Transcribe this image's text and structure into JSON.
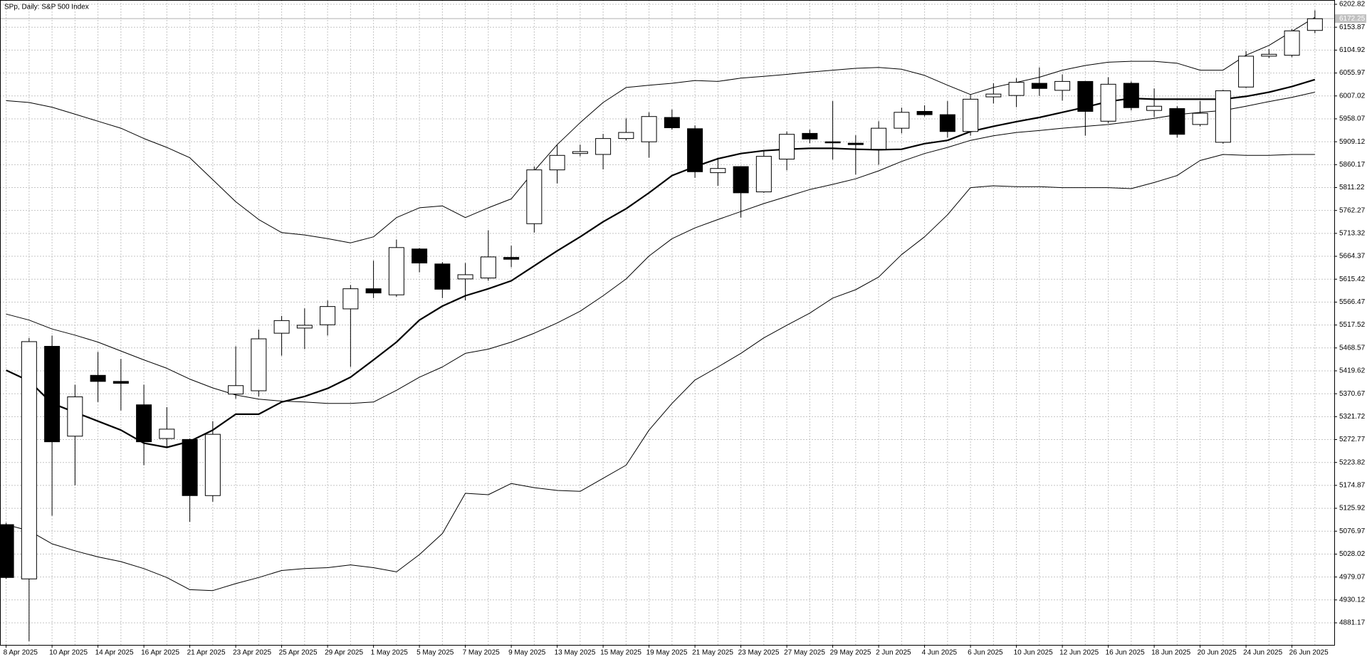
{
  "chart_data": {
    "type": "candlestick",
    "title": "SPp, Daily:  S&P 500 Index",
    "categories": [
      "8 Apr 2025",
      null,
      "10 Apr 2025",
      null,
      "14 Apr 2025",
      null,
      "16 Apr 2025",
      null,
      "21 Apr 2025",
      null,
      "23 Apr 2025",
      null,
      "25 Apr 2025",
      null,
      "29 Apr 2025",
      null,
      "1 May 2025",
      null,
      "5 May 2025",
      null,
      "7 May 2025",
      null,
      "9 May 2025",
      null,
      "13 May 2025",
      null,
      "15 May 2025",
      null,
      "19 May 2025",
      null,
      "21 May 2025",
      null,
      "23 May 2025",
      null,
      "27 May 2025",
      null,
      "29 May 2025",
      null,
      "2 Jun 2025",
      null,
      "4 Jun 2025",
      null,
      "6 Jun 2025",
      null,
      "10 Jun 2025",
      null,
      "12 Jun 2025",
      null,
      "16 Jun 2025",
      null,
      "18 Jun 2025",
      null,
      "20 Jun 2025",
      null,
      "24 Jun 2025",
      null,
      "26 Jun 2025",
      null
    ],
    "open": [
      5091,
      4975,
      5472,
      5280,
      5410,
      5397,
      5347,
      5275,
      5273,
      5153,
      5370,
      5377,
      5500,
      5511,
      5518,
      5552,
      5595,
      5582,
      5680,
      5648,
      5616,
      5618,
      5662,
      5734,
      5849,
      5884,
      5882,
      5916,
      5909,
      5961,
      5937,
      5843,
      5856,
      5802,
      5872,
      5927,
      5909,
      5906,
      5893,
      5938,
      5974,
      5967,
      5931,
      6005,
      6008,
      6034,
      6019,
      6038,
      5953,
      6034,
      5976,
      5980,
      5946,
      5908,
      6026,
      6092,
      6094,
      6147
    ],
    "high": [
      5095,
      5490,
      5495,
      5390,
      5460,
      5445,
      5390,
      5342,
      5275,
      5312,
      5472,
      5508,
      5537,
      5553,
      5570,
      5603,
      5655,
      5700,
      5682,
      5652,
      5650,
      5720,
      5687,
      5856,
      5903,
      5903,
      5926,
      5959,
      5972,
      5978,
      5944,
      5875,
      5856,
      5890,
      5931,
      5935,
      5996,
      5923,
      5953,
      5982,
      5987,
      5996,
      6010,
      6034,
      6045,
      6068,
      6053,
      6038,
      6047,
      6038,
      6023,
      5985,
      5996,
      6020,
      6103,
      6107,
      6150,
      6190
    ],
    "low": [
      4975,
      4842,
      5110,
      5175,
      5353,
      5335,
      5218,
      5255,
      5097,
      5140,
      5360,
      5365,
      5452,
      5466,
      5495,
      5428,
      5575,
      5578,
      5630,
      5575,
      5570,
      5612,
      5641,
      5715,
      5820,
      5878,
      5850,
      5912,
      5875,
      5935,
      5832,
      5815,
      5747,
      5800,
      5848,
      5906,
      5871,
      5839,
      5860,
      5927,
      5963,
      5918,
      5922,
      5991,
      5983,
      6007,
      5997,
      5922,
      5949,
      5976,
      5962,
      5918,
      5942,
      5905,
      6024,
      6088,
      6090,
      6141
    ],
    "close": [
      4978,
      5482,
      5268,
      5364,
      5397,
      5393,
      5268,
      5295,
      5153,
      5284,
      5388,
      5488,
      5527,
      5517,
      5557,
      5595,
      5586,
      5683,
      5650,
      5594,
      5625,
      5663,
      5658,
      5849,
      5880,
      5888,
      5916,
      5929,
      5963,
      5939,
      5845,
      5852,
      5800,
      5878,
      5925,
      5915,
      5907,
      5903,
      5938,
      5972,
      5967,
      5931,
      6000,
      6011,
      6036,
      6023,
      6038,
      5974,
      6032,
      5982,
      5985,
      5925,
      5970,
      6018,
      6092,
      6096,
      6146,
      6172
    ],
    "up_color": "#ffffff",
    "down_color": "#000000",
    "indicators": {
      "ma": {
        "color": "#000000",
        "values": [
          5421,
          5398,
          5350,
          5331,
          5312,
          5293,
          5265,
          5256,
          5269,
          5293,
          5327,
          5327,
          5353,
          5365,
          5382,
          5406,
          5443,
          5481,
          5528,
          5558,
          5580,
          5595,
          5612,
          5644,
          5676,
          5706,
          5738,
          5766,
          5800,
          5837,
          5856,
          5873,
          5884,
          5890,
          5893,
          5895,
          5895,
          5893,
          5892,
          5893,
          5905,
          5912,
          5931,
          5942,
          5952,
          5961,
          5972,
          5983,
          5995,
          6002,
          6000,
          6000,
          6000,
          6000,
          6006,
          6015,
          6027,
          6042
        ]
      },
      "bollinger": {
        "color": "#000000",
        "upper": [
          5997,
          5993,
          5983,
          5968,
          5953,
          5938,
          5916,
          5897,
          5875,
          5828,
          5781,
          5743,
          5715,
          5710,
          5702,
          5693,
          5706,
          5747,
          5768,
          5772,
          5747,
          5768,
          5787,
          5847,
          5903,
          5950,
          5993,
          6025,
          6030,
          6034,
          6040,
          6038,
          6045,
          6049,
          6053,
          6058,
          6062,
          6066,
          6068,
          6064,
          6051,
          6030,
          6010,
          6025,
          6036,
          6047,
          6062,
          6072,
          6079,
          6081,
          6081,
          6077,
          6062,
          6062,
          6094,
          6115,
          6145,
          6175
        ],
        "middle": [
          5541,
          5528,
          5509,
          5496,
          5481,
          5462,
          5443,
          5425,
          5402,
          5383,
          5368,
          5359,
          5355,
          5353,
          5350,
          5350,
          5353,
          5378,
          5406,
          5428,
          5457,
          5466,
          5481,
          5500,
          5522,
          5547,
          5580,
          5616,
          5665,
          5702,
          5725,
          5743,
          5760,
          5777,
          5792,
          5807,
          5818,
          5830,
          5847,
          5867,
          5884,
          5897,
          5912,
          5922,
          5929,
          5933,
          5938,
          5942,
          5946,
          5952,
          5959,
          5967,
          5972,
          5976,
          5985,
          5995,
          6004,
          6015
        ],
        "lower": [
          5091,
          5078,
          5050,
          5035,
          5022,
          5012,
          4997,
          4978,
          4952,
          4950,
          4965,
          4978,
          4993,
          4997,
          4999,
          5005,
          4999,
          4990,
          5027,
          5072,
          5158,
          5155,
          5179,
          5170,
          5164,
          5162,
          5190,
          5218,
          5293,
          5350,
          5400,
          5428,
          5457,
          5490,
          5517,
          5543,
          5575,
          5593,
          5620,
          5668,
          5706,
          5753,
          5811,
          5815,
          5813,
          5813,
          5811,
          5811,
          5811,
          5809,
          5822,
          5837,
          5869,
          5882,
          5880,
          5880,
          5882,
          5882
        ]
      }
    },
    "last_price": 6172.25,
    "ylim": [
      4834,
      6212
    ],
    "yticks": [
      6202.82,
      6153.87,
      6104.92,
      6055.97,
      6007.02,
      5958.07,
      5909.12,
      5860.17,
      5811.22,
      5762.27,
      5713.32,
      5664.37,
      5615.42,
      5566.47,
      5517.52,
      5468.57,
      5419.62,
      5370.67,
      5321.72,
      5272.77,
      5223.82,
      5174.87,
      5125.92,
      5076.97,
      5028.02,
      4979.07,
      4930.12,
      4881.17
    ],
    "grid": true
  }
}
